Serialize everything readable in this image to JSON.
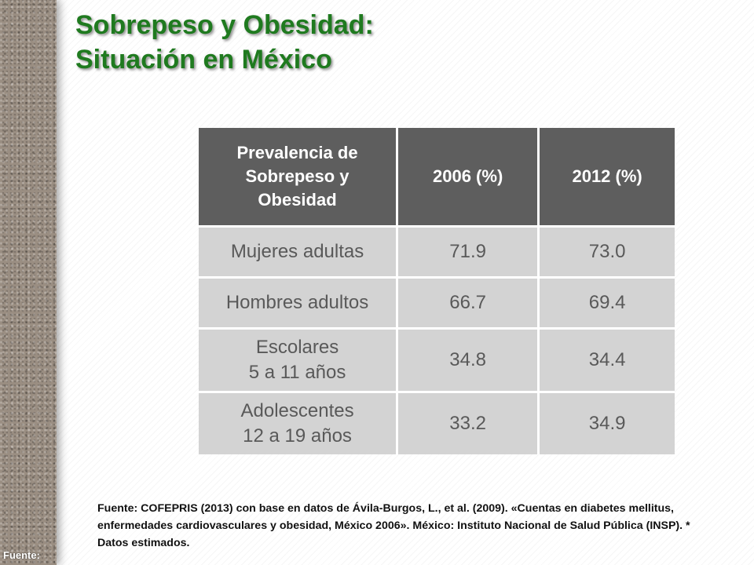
{
  "title": {
    "line1": "Sobrepeso y Obesidad:",
    "line2": "Situación en México"
  },
  "table": {
    "headers": [
      [
        "Prevalencia de",
        "Sobrepeso y",
        "Obesidad"
      ],
      [
        "2006 (%)"
      ],
      [
        "2012 (%)"
      ]
    ],
    "rows": [
      {
        "label": [
          "Mujeres adultas"
        ],
        "v2006": "71.9",
        "v2012": "73.0"
      },
      {
        "label": [
          "Hombres adultos"
        ],
        "v2006": "66.7",
        "v2012": "69.4"
      },
      {
        "label": [
          "Escolares",
          "5 a 11 años"
        ],
        "v2006": "34.8",
        "v2012": "34.4"
      },
      {
        "label": [
          "Adolescentes",
          "12 a 19 años"
        ],
        "v2006": "33.2",
        "v2012": "34.9"
      }
    ]
  },
  "source_note": "Fuente: COFEPRIS (2013) con base en datos de Ávila-Burgos, L., et al. (2009). «Cuentas en diabetes mellitus, enfermedades cardiovasculares y obesidad, México 2006». México: Instituto Nacional de Salud Pública (INSP). * Datos estimados.",
  "footer_fuente": "Fuente:",
  "colors": {
    "title_green": "#1f7a1f",
    "header_bg": "#5e5e5e",
    "cell_bg": "#d3d3d3",
    "cell_text": "#595959"
  }
}
